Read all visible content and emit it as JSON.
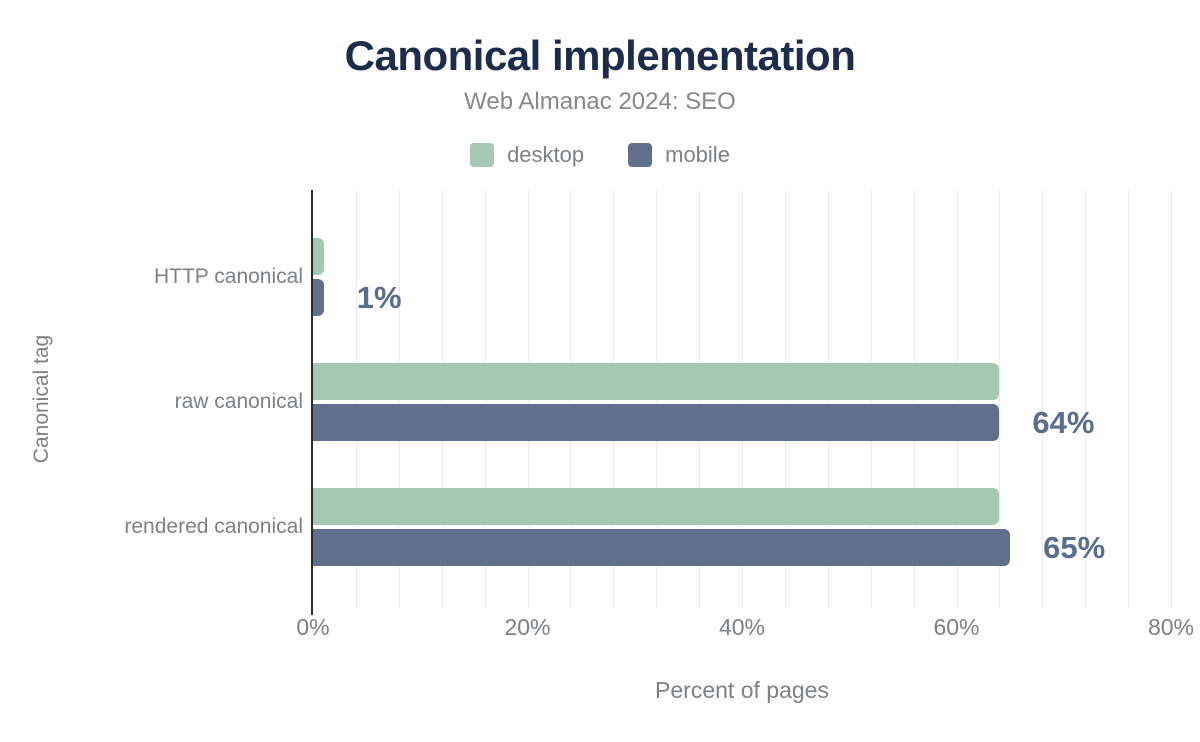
{
  "chart_data": {
    "type": "bar",
    "orientation": "horizontal",
    "title": "Canonical implementation",
    "subtitle": "Web Almanac 2024: SEO",
    "xlabel": "Percent of pages",
    "ylabel": "Canonical tag",
    "categories": [
      "HTTP canonical",
      "raw canonical",
      "rendered canonical"
    ],
    "series": [
      {
        "name": "desktop",
        "color": "#a5c8b3",
        "values": [
          1,
          64,
          64
        ]
      },
      {
        "name": "mobile",
        "color": "#60708c",
        "values": [
          1,
          64,
          65
        ]
      }
    ],
    "value_labels": [
      "1%",
      "64%",
      "65%"
    ],
    "xlim": [
      0,
      80
    ],
    "xticks": [
      0,
      20,
      40,
      60,
      80
    ],
    "xtick_labels": [
      "0%",
      "20%",
      "40%",
      "60%",
      "80%"
    ],
    "grid": "vertical minor gridlines every 4%",
    "legend_position": "top"
  },
  "colors": {
    "background": "#ffffff",
    "title": "#1d2b4d",
    "subtitle": "#85888c",
    "axis_labels": "#7d8185",
    "value_labels": "#5a6c8f",
    "gridline": "#ebebeb",
    "axis_line": "#25282d"
  }
}
